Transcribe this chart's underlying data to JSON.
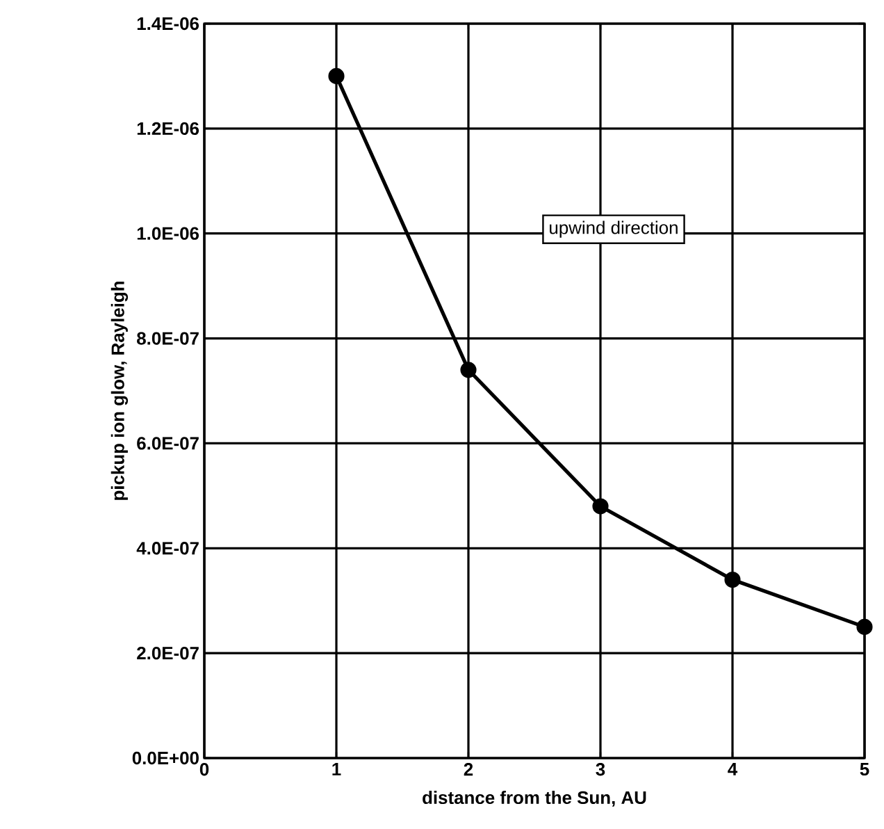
{
  "chart_data": {
    "type": "line",
    "xlabel": "distance from the Sun,  AU",
    "ylabel": "pickup ion glow, Rayleigh",
    "x": [
      1,
      2,
      3,
      4,
      5
    ],
    "series": [
      {
        "color": "#000000",
        "values": [
          1.3e-06,
          7.4e-07,
          4.8e-07,
          3.4e-07,
          2.5e-07
        ]
      }
    ],
    "xlim": [
      0,
      5
    ],
    "xticks": [
      0,
      1,
      2,
      3,
      4,
      5
    ],
    "ylim": [
      0,
      1.4e-06
    ],
    "yticks": [
      {
        "value": 0,
        "label": "0.0E+00"
      },
      {
        "value": 2e-07,
        "label": "2.0E-07"
      },
      {
        "value": 4e-07,
        "label": "4.0E-07"
      },
      {
        "value": 6e-07,
        "label": "6.0E-07"
      },
      {
        "value": 8e-07,
        "label": "8.0E-07"
      },
      {
        "value": 1e-06,
        "label": "1.0E-06"
      },
      {
        "value": 1.2e-06,
        "label": "1.2E-06"
      },
      {
        "value": 1.4e-06,
        "label": "1.4E-06"
      }
    ],
    "grid": true,
    "marker": "circle",
    "line_style": "solid",
    "annotations": [
      "upwind direction"
    ]
  }
}
